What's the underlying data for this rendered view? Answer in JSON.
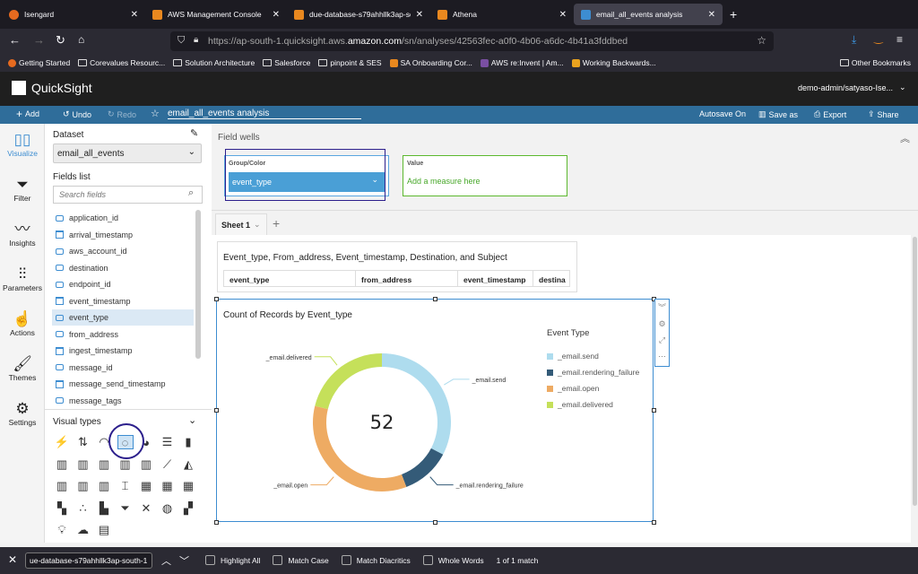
{
  "browser": {
    "tabs": [
      {
        "label": "Isengard",
        "color": "#e66a1f"
      },
      {
        "label": "AWS Management Console",
        "color": "#e8881f"
      },
      {
        "label": "due-database-s79ahhllk3ap-so",
        "color": "#e8881f"
      },
      {
        "label": "Athena",
        "color": "#e8881f"
      },
      {
        "label": "email_all_events analysis",
        "color": "#3d8dd1",
        "active": true
      }
    ],
    "url_prefix": "https://ap-south-1.quicksight.aws.",
    "url_domain": "amazon.com",
    "url_suffix": "/sn/analyses/42563fec-a0f0-4b06-a6dc-4b41a3fddbed",
    "bookmarks": [
      "Getting Started",
      "Corevalues Resourc...",
      "Solution Architecture",
      "Salesforce",
      "pinpoint & SES",
      "SA Onboarding Cor...",
      "AWS re:Invent | Am...",
      "Working Backwards..."
    ],
    "other_bookmarks": "Other Bookmarks"
  },
  "app": {
    "name": "QuickSight",
    "user": "demo-admin/satyaso-Ise...",
    "toolbar": {
      "add": "Add",
      "undo": "Undo",
      "redo": "Redo",
      "analysis_name": "email_all_events analysis",
      "autosave": "Autosave On",
      "save_as": "Save as",
      "export": "Export",
      "share": "Share"
    }
  },
  "rail": [
    "Visualize",
    "Filter",
    "Insights",
    "Parameters",
    "Actions",
    "Themes",
    "Settings"
  ],
  "dataset": {
    "label": "Dataset",
    "value": "email_all_events"
  },
  "fields_list": {
    "label": "Fields list",
    "search_placeholder": "Search fields",
    "items": [
      {
        "name": "application_id",
        "type": "dimension"
      },
      {
        "name": "arrival_timestamp",
        "type": "date"
      },
      {
        "name": "aws_account_id",
        "type": "dimension"
      },
      {
        "name": "destination",
        "type": "dimension"
      },
      {
        "name": "endpoint_id",
        "type": "dimension"
      },
      {
        "name": "event_timestamp",
        "type": "date"
      },
      {
        "name": "event_type",
        "type": "dimension",
        "selected": true
      },
      {
        "name": "from_address",
        "type": "dimension"
      },
      {
        "name": "ingest_timestamp",
        "type": "date"
      },
      {
        "name": "message_id",
        "type": "dimension"
      },
      {
        "name": "message_send_timestamp",
        "type": "date"
      },
      {
        "name": "message_tags",
        "type": "dimension"
      }
    ]
  },
  "visual_types": {
    "label": "Visual types",
    "icons": [
      "autograph",
      "kpi",
      "gauge",
      "donut",
      "pie",
      "horizontal-bar",
      "vertical-bar",
      "stacked-horizontal-bar",
      "stacked-vertical-bar",
      "percent-horizontal-bar",
      "percent-vertical-bar",
      "combo-bar",
      "line",
      "area",
      "combo-line",
      "combo-stacked",
      "area-line",
      "box-plot",
      "heat-map",
      "pivot-table",
      "table",
      "tree-map",
      "scatter",
      "histogram",
      "funnel",
      "sankey",
      "geo-map",
      "filled-map",
      "insight",
      "word-cloud",
      "custom-content"
    ],
    "selected": "donut"
  },
  "field_wells": {
    "title": "Field wells",
    "group_label": "Group/Color",
    "group_value": "event_type",
    "value_label": "Value",
    "value_placeholder": "Add a measure here"
  },
  "sheets": [
    "Sheet 1"
  ],
  "table_visual": {
    "title": "Event_type, From_address, Event_timestamp, Destination, and Subject",
    "columns": [
      "event_type",
      "from_address",
      "event_timestamp",
      "destina"
    ]
  },
  "chart_data": {
    "type": "pie",
    "variant": "donut",
    "title": "Count of Records by Event_type",
    "center_label": "52",
    "legend_title": "Event Type",
    "legend_position": "right",
    "categories": [
      "_email.send",
      "_email.rendering_failure",
      "_email.open",
      "_email.delivered"
    ],
    "values": [
      17,
      6,
      18,
      11
    ],
    "colors": [
      "#aedcee",
      "#345b78",
      "#eeab63",
      "#c5e05a"
    ]
  },
  "findbar": {
    "query": "ue-database-s79ahhllk3ap-south-1",
    "options": [
      "Highlight All",
      "Match Case",
      "Match Diacritics",
      "Whole Words"
    ],
    "status": "1 of 1 match"
  }
}
